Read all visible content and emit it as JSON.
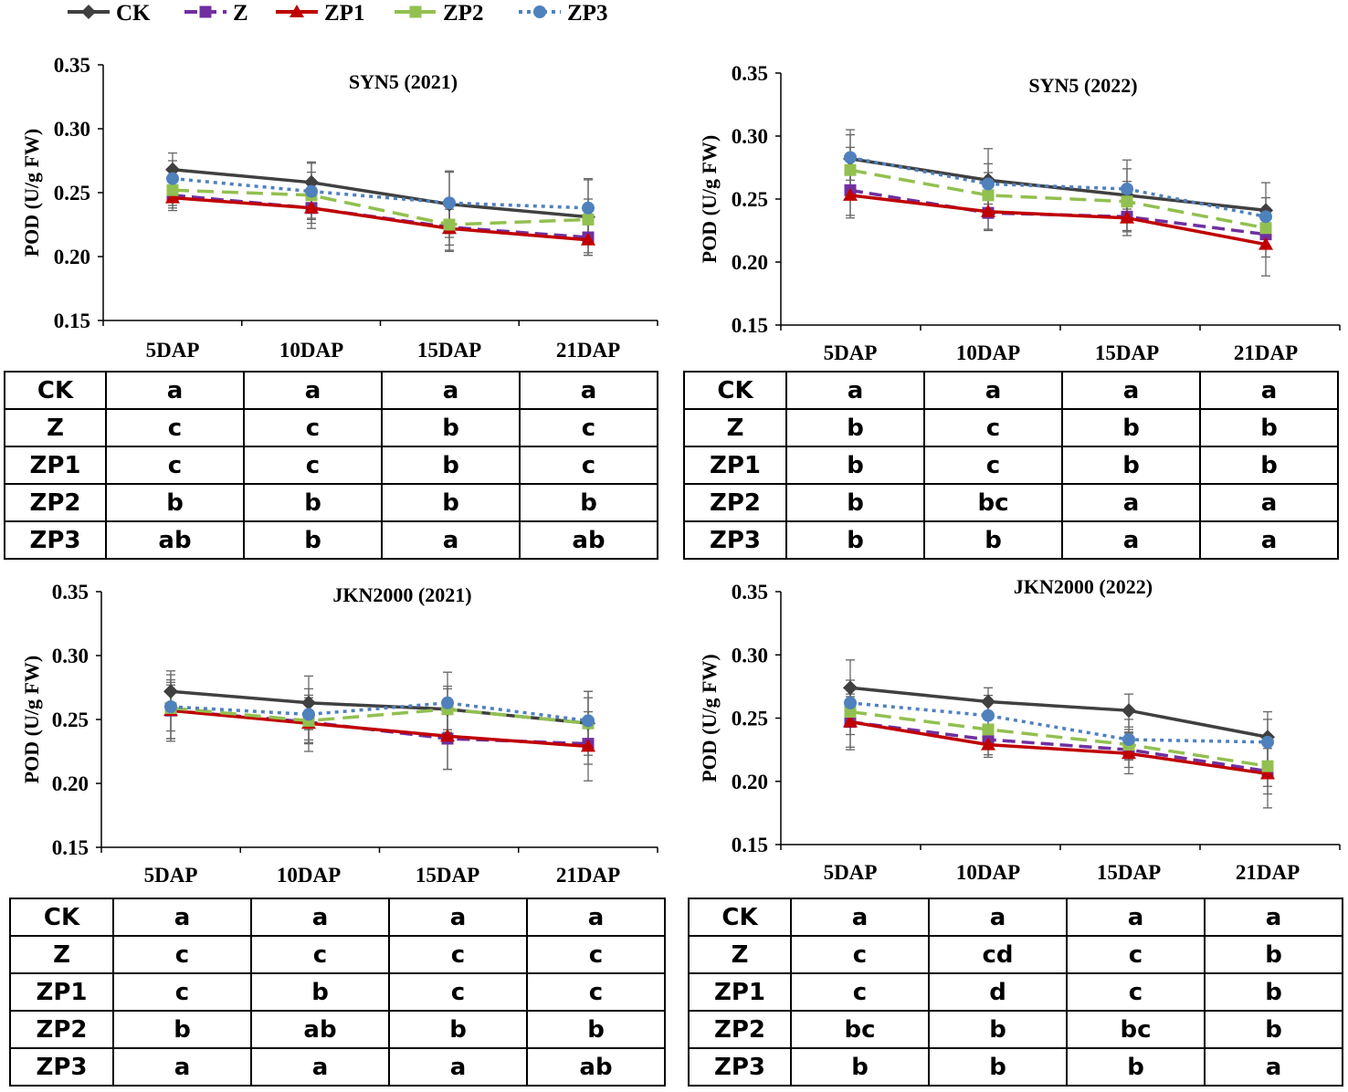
{
  "legend": [
    {
      "name": "CK",
      "color": "#404040",
      "marker": "diamond",
      "dash": "solid"
    },
    {
      "name": "Z",
      "color": "#7030A0",
      "marker": "square",
      "dash": "dash"
    },
    {
      "name": "ZP1",
      "color": "#C00000",
      "marker": "triangle",
      "dash": "solid"
    },
    {
      "name": "ZP2",
      "color": "#92C050",
      "marker": "square",
      "dash": "longdash"
    },
    {
      "name": "ZP3",
      "color": "#4F81BD",
      "marker": "circle",
      "dash": "dot"
    }
  ],
  "chart_data": [
    {
      "type": "line",
      "title": "SYN5 (2021)",
      "ylabel": "POD (U/g FW)",
      "xlabel": "",
      "ylim": [
        0.15,
        0.35
      ],
      "yticks": [
        "0.15",
        "0.20",
        "0.25",
        "0.30",
        "0.35"
      ],
      "categories": [
        "5DAP",
        "10DAP",
        "15DAP",
        "21DAP"
      ],
      "series": [
        {
          "name": "CK",
          "values": [
            0.268,
            0.258,
            0.241,
            0.231
          ],
          "errors": [
            0.013,
            0.016,
            0.026,
            0.03
          ]
        },
        {
          "name": "Z",
          "values": [
            0.248,
            0.238,
            0.223,
            0.215
          ],
          "errors": [
            0.01,
            0.012,
            0.014,
            0.012
          ]
        },
        {
          "name": "ZP1",
          "values": [
            0.246,
            0.238,
            0.222,
            0.213
          ],
          "errors": [
            0.01,
            0.016,
            0.018,
            0.012
          ]
        },
        {
          "name": "ZP2",
          "values": [
            0.252,
            0.248,
            0.225,
            0.229
          ],
          "errors": [
            0.012,
            0.018,
            0.02,
            0.016
          ]
        },
        {
          "name": "ZP3",
          "values": [
            0.261,
            0.251,
            0.242,
            0.238
          ],
          "errors": [
            0.014,
            0.022,
            0.024,
            0.022
          ]
        }
      ],
      "significance": {
        "CK": [
          "a",
          "a",
          "a",
          "a"
        ],
        "Z": [
          "c",
          "c",
          "b",
          "c"
        ],
        "ZP1": [
          "c",
          "c",
          "b",
          "c"
        ],
        "ZP2": [
          "b",
          "b",
          "b",
          "b"
        ],
        "ZP3": [
          "ab",
          "b",
          "a",
          "ab"
        ]
      }
    },
    {
      "type": "line",
      "title": "SYN5 (2022)",
      "ylabel": "POD (U/g FW)",
      "xlabel": "",
      "ylim": [
        0.15,
        0.35
      ],
      "yticks": [
        "0.15",
        "0.20",
        "0.25",
        "0.30",
        "0.35"
      ],
      "categories": [
        "5DAP",
        "10DAP",
        "15DAP",
        "21DAP"
      ],
      "series": [
        {
          "name": "CK",
          "values": [
            0.282,
            0.265,
            0.253,
            0.241
          ],
          "errors": [
            0.023,
            0.025,
            0.028,
            0.022
          ]
        },
        {
          "name": "Z",
          "values": [
            0.257,
            0.239,
            0.236,
            0.222
          ],
          "errors": [
            0.02,
            0.014,
            0.012,
            0.018
          ]
        },
        {
          "name": "ZP1",
          "values": [
            0.253,
            0.24,
            0.235,
            0.214
          ],
          "errors": [
            0.018,
            0.014,
            0.014,
            0.025
          ]
        },
        {
          "name": "ZP2",
          "values": [
            0.273,
            0.253,
            0.248,
            0.227
          ],
          "errors": [
            0.018,
            0.018,
            0.016,
            0.015
          ]
        },
        {
          "name": "ZP3",
          "values": [
            0.283,
            0.262,
            0.258,
            0.236
          ],
          "errors": [
            0.018,
            0.016,
            0.016,
            0.015
          ]
        }
      ],
      "significance": {
        "CK": [
          "a",
          "a",
          "a",
          "a"
        ],
        "Z": [
          "b",
          "c",
          "b",
          "b"
        ],
        "ZP1": [
          "b",
          "c",
          "b",
          "b"
        ],
        "ZP2": [
          "b",
          "bc",
          "a",
          "a"
        ],
        "ZP3": [
          "b",
          "b",
          "a",
          "a"
        ]
      }
    },
    {
      "type": "line",
      "title": "JKN2000 (2021)",
      "ylabel": "POD (U/g FW)",
      "xlabel": "",
      "ylim": [
        0.15,
        0.35
      ],
      "yticks": [
        "0.15",
        "0.20",
        "0.25",
        "0.30",
        "0.35"
      ],
      "categories": [
        "5DAP",
        "10DAP",
        "15DAP",
        "21DAP"
      ],
      "series": [
        {
          "name": "CK",
          "values": [
            0.272,
            0.263,
            0.258,
            0.247
          ],
          "errors": [
            0.016,
            0.021,
            0.018,
            0.025
          ]
        },
        {
          "name": "Z",
          "values": [
            0.257,
            0.248,
            0.235,
            0.231
          ],
          "errors": [
            0.022,
            0.016,
            0.024,
            0.016
          ]
        },
        {
          "name": "ZP1",
          "values": [
            0.257,
            0.247,
            0.237,
            0.229
          ],
          "errors": [
            0.024,
            0.022,
            0.026,
            0.027
          ]
        },
        {
          "name": "ZP2",
          "values": [
            0.259,
            0.249,
            0.258,
            0.247
          ],
          "errors": [
            0.018,
            0.018,
            0.016,
            0.02
          ]
        },
        {
          "name": "ZP3",
          "values": [
            0.26,
            0.254,
            0.263,
            0.249
          ],
          "errors": [
            0.025,
            0.02,
            0.024,
            0.023
          ]
        }
      ],
      "significance": {
        "CK": [
          "a",
          "a",
          "a",
          "a"
        ],
        "Z": [
          "c",
          "c",
          "c",
          "c"
        ],
        "ZP1": [
          "c",
          "b",
          "c",
          "c"
        ],
        "ZP2": [
          "b",
          "ab",
          "b",
          "b"
        ],
        "ZP3": [
          "a",
          "a",
          "a",
          "ab"
        ]
      }
    },
    {
      "type": "line",
      "title": "JKN2000 (2022)",
      "ylabel": "POD (U/g FW)",
      "xlabel": "",
      "ylim": [
        0.15,
        0.35
      ],
      "yticks": [
        "0.15",
        "0.20",
        "0.25",
        "0.30",
        "0.35"
      ],
      "categories": [
        "5DAP",
        "10DAP",
        "15DAP",
        "21DAP"
      ],
      "series": [
        {
          "name": "CK",
          "values": [
            0.274,
            0.263,
            0.256,
            0.235
          ],
          "errors": [
            0.022,
            0.011,
            0.013,
            0.02
          ]
        },
        {
          "name": "Z",
          "values": [
            0.247,
            0.233,
            0.225,
            0.208
          ],
          "errors": [
            0.02,
            0.012,
            0.014,
            0.018
          ]
        },
        {
          "name": "ZP1",
          "values": [
            0.247,
            0.229,
            0.222,
            0.206
          ],
          "errors": [
            0.022,
            0.01,
            0.016,
            0.027
          ]
        },
        {
          "name": "ZP2",
          "values": [
            0.255,
            0.241,
            0.229,
            0.212
          ],
          "errors": [
            0.018,
            0.014,
            0.012,
            0.016
          ]
        },
        {
          "name": "ZP3",
          "values": [
            0.262,
            0.252,
            0.233,
            0.231
          ],
          "errors": [
            0.018,
            0.016,
            0.016,
            0.018
          ]
        }
      ],
      "significance": {
        "CK": [
          "a",
          "a",
          "a",
          "a"
        ],
        "Z": [
          "c",
          "cd",
          "c",
          "b"
        ],
        "ZP1": [
          "c",
          "d",
          "c",
          "b"
        ],
        "ZP2": [
          "bc",
          "b",
          "bc",
          "b"
        ],
        "ZP3": [
          "b",
          "b",
          "b",
          "a"
        ]
      }
    }
  ]
}
